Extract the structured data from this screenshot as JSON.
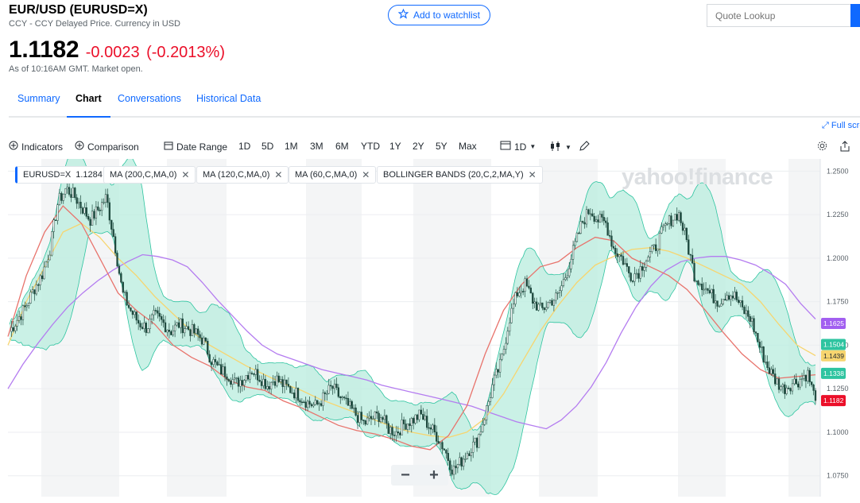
{
  "quote": {
    "title": "EUR/USD (EURUSD=X)",
    "subtitle": "CCY - CCY Delayed Price. Currency in USD",
    "price": "1.1182",
    "change": "-0.0023",
    "change_pct": "(-0.2013%)",
    "as_of": "As of 10:16AM GMT. Market open."
  },
  "header": {
    "watchlist_label": "Add to watchlist",
    "search_placeholder": "Quote Lookup"
  },
  "tabs": [
    {
      "label": "Summary"
    },
    {
      "label": "Chart",
      "active": true
    },
    {
      "label": "Conversations"
    },
    {
      "label": "Historical Data"
    }
  ],
  "toolbar": {
    "fullscreen_label": "Full screen",
    "indicators_label": "Indicators",
    "comparison_label": "Comparison",
    "date_range_label": "Date Range",
    "ranges": [
      "1D",
      "5D",
      "1M",
      "3M",
      "6M",
      "YTD",
      "1Y",
      "2Y",
      "5Y",
      "Max"
    ],
    "interval_label": "1D"
  },
  "legend": {
    "symbol": "EURUSD=X",
    "symbol_value": "1.1284",
    "studies": [
      "MA (200,C,MA,0)",
      "MA (120,C,MA,0)",
      "MA (60,C,MA,0)",
      "BOLLINGER BANDS (20,C,2,MA,Y)"
    ]
  },
  "watermark": "yahoo!finance",
  "colors": {
    "accent": "#0f69ff",
    "down": "#eb0f29",
    "candle": "#1f4a3f",
    "bollinger_fill": "#bdeee0",
    "bollinger_line": "#2ec4a0",
    "ma200": "#b47cf0",
    "ma120": "#f7d56f",
    "ma60": "#e8736c"
  },
  "chart_data": {
    "type": "candlestick",
    "ylim": [
      1.063,
      1.257
    ],
    "y_ticks": [
      "1.2500",
      "1.2250",
      "1.2000",
      "1.1750",
      "1.1500",
      "1.1250",
      "1.1000",
      "1.0750"
    ],
    "close_series": [
      1.158,
      1.165,
      1.172,
      1.182,
      1.19,
      1.205,
      1.232,
      1.24,
      1.236,
      1.229,
      1.222,
      1.228,
      1.235,
      1.21,
      1.18,
      1.17,
      1.163,
      1.16,
      1.167,
      1.163,
      1.158,
      1.162,
      1.16,
      1.157,
      1.153,
      1.142,
      1.136,
      1.134,
      1.128,
      1.131,
      1.136,
      1.132,
      1.127,
      1.131,
      1.127,
      1.124,
      1.121,
      1.117,
      1.115,
      1.12,
      1.126,
      1.12,
      1.115,
      1.11,
      1.105,
      1.108,
      1.11,
      1.102,
      1.1,
      1.105,
      1.107,
      1.11,
      1.104,
      1.098,
      1.09,
      1.078,
      1.083,
      1.09,
      1.095,
      1.11,
      1.128,
      1.14,
      1.165,
      1.18,
      1.185,
      1.175,
      1.17,
      1.175,
      1.178,
      1.19,
      1.205,
      1.22,
      1.228,
      1.222,
      1.22,
      1.205,
      1.2,
      1.19,
      1.192,
      1.2,
      1.205,
      1.215,
      1.222,
      1.226,
      1.21,
      1.19,
      1.185,
      1.179,
      1.175,
      1.18,
      1.178,
      1.17,
      1.165,
      1.15,
      1.138,
      1.13,
      1.125,
      1.128,
      1.13,
      1.134,
      1.118
    ],
    "ma200": [
      1.125,
      1.139,
      1.151,
      1.162,
      1.172,
      1.18,
      1.187,
      1.193,
      1.198,
      1.202,
      1.201,
      1.199,
      1.195,
      1.186,
      1.176,
      1.167,
      1.158,
      1.15,
      1.145,
      1.142,
      1.139,
      1.136,
      1.134,
      1.132,
      1.13,
      1.127,
      1.125,
      1.123,
      1.121,
      1.119,
      1.117,
      1.115,
      1.112,
      1.109,
      1.106,
      1.104,
      1.102,
      1.107,
      1.115,
      1.126,
      1.14,
      1.157,
      1.172,
      1.184,
      1.193,
      1.198,
      1.2,
      1.201,
      1.201,
      1.199,
      1.196,
      1.191,
      1.185,
      1.174,
      1.165
    ],
    "ma120": [
      1.15,
      1.175,
      1.195,
      1.215,
      1.22,
      1.212,
      1.2,
      1.19,
      1.178,
      1.168,
      1.158,
      1.15,
      1.144,
      1.138,
      1.133,
      1.128,
      1.124,
      1.119,
      1.115,
      1.111,
      1.107,
      1.103,
      1.1,
      1.098,
      1.097,
      1.1,
      1.108,
      1.122,
      1.14,
      1.158,
      1.173,
      1.186,
      1.196,
      1.201,
      1.205,
      1.206,
      1.204,
      1.2,
      1.195,
      1.19,
      1.185,
      1.175,
      1.162,
      1.15,
      1.144
    ],
    "ma60": [
      1.155,
      1.19,
      1.215,
      1.23,
      1.22,
      1.2,
      1.18,
      1.17,
      1.162,
      1.15,
      1.143,
      1.138,
      1.13,
      1.126,
      1.124,
      1.118,
      1.114,
      1.109,
      1.104,
      1.101,
      1.099,
      1.096,
      1.092,
      1.09,
      1.098,
      1.115,
      1.145,
      1.17,
      1.185,
      1.195,
      1.198,
      1.206,
      1.212,
      1.21,
      1.2,
      1.195,
      1.19,
      1.182,
      1.17,
      1.157,
      1.145,
      1.136,
      1.131,
      1.132,
      1.133
    ],
    "price_labels": [
      {
        "text": "1.1625",
        "value": 1.1625,
        "color": "#a25ff0"
      },
      {
        "text": "1.1504",
        "value": 1.1504,
        "color": "#2ec4a0"
      },
      {
        "text": "1.1439",
        "value": 1.1439,
        "color": "#f7d56f"
      },
      {
        "text": "1.1338",
        "value": 1.1338,
        "color": "#2ec4a0"
      },
      {
        "text": "1.1182",
        "value": 1.1182,
        "color": "#eb0f29"
      }
    ]
  }
}
